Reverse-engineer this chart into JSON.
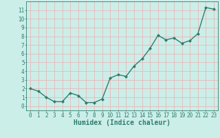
{
  "x": [
    0,
    1,
    2,
    3,
    4,
    5,
    6,
    7,
    8,
    9,
    10,
    11,
    12,
    13,
    14,
    15,
    16,
    17,
    18,
    19,
    20,
    21,
    22,
    23
  ],
  "y": [
    2.0,
    1.7,
    1.0,
    0.5,
    0.5,
    1.5,
    1.2,
    0.4,
    0.4,
    0.8,
    3.2,
    3.6,
    3.4,
    4.6,
    5.4,
    6.6,
    8.1,
    7.6,
    7.8,
    7.2,
    7.5,
    8.3,
    11.3,
    11.1
  ],
  "line_color": "#2e7d6e",
  "marker": "D",
  "marker_size": 2.0,
  "linewidth": 1.0,
  "xlabel": "Humidex (Indice chaleur)",
  "xlim": [
    -0.5,
    23.5
  ],
  "ylim": [
    -0.5,
    12
  ],
  "xticks": [
    0,
    1,
    2,
    3,
    4,
    5,
    6,
    7,
    8,
    9,
    10,
    11,
    12,
    13,
    14,
    15,
    16,
    17,
    18,
    19,
    20,
    21,
    22,
    23
  ],
  "yticks": [
    0,
    1,
    2,
    3,
    4,
    5,
    6,
    7,
    8,
    9,
    10,
    11
  ],
  "bg_color": "#cceee8",
  "grid_color": "#e8b8b8",
  "tick_label_fontsize": 5.5,
  "xlabel_fontsize": 7.0
}
